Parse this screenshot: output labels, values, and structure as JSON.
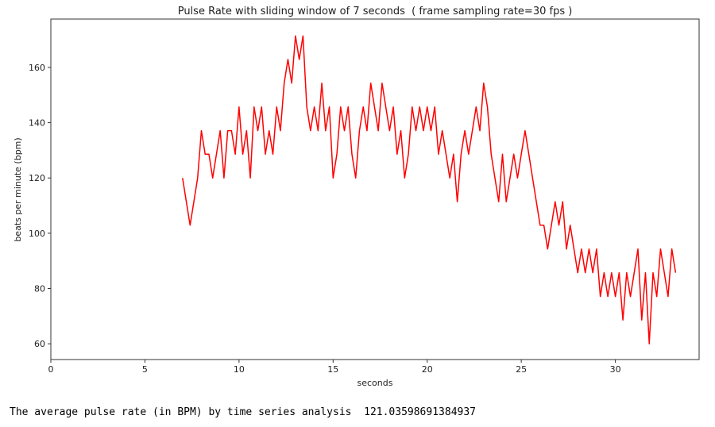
{
  "chart_data": {
    "type": "line",
    "title": "Pulse Rate with sliding window of 7 seconds  ( frame sampling rate=30 fps )",
    "x_label": "seconds",
    "y_label": "beats per minute (bpm)",
    "x": [
      7.0,
      7.2,
      7.4,
      7.6,
      7.8,
      8.0,
      8.2,
      8.4,
      8.6,
      8.8,
      9.0,
      9.2,
      9.4,
      9.6,
      9.8,
      10.0,
      10.2,
      10.4,
      10.6,
      10.8,
      11.0,
      11.2,
      11.4,
      11.6,
      11.8,
      12.0,
      12.2,
      12.4,
      12.6,
      12.8,
      13.0,
      13.2,
      13.4,
      13.6,
      13.8,
      14.0,
      14.2,
      14.4,
      14.6,
      14.8,
      15.0,
      15.2,
      15.4,
      15.6,
      15.8,
      16.0,
      16.2,
      16.4,
      16.6,
      16.8,
      17.0,
      17.2,
      17.4,
      17.6,
      17.8,
      18.0,
      18.2,
      18.4,
      18.6,
      18.8,
      19.0,
      19.2,
      19.4,
      19.6,
      19.8,
      20.0,
      20.2,
      20.4,
      20.6,
      20.8,
      21.0,
      21.2,
      21.4,
      21.6,
      21.8,
      22.0,
      22.2,
      22.4,
      22.6,
      22.8,
      23.0,
      23.2,
      23.4,
      23.6,
      23.8,
      24.0,
      24.2,
      24.4,
      24.6,
      24.8,
      25.0,
      25.2,
      25.4,
      25.6,
      25.8,
      26.0,
      26.2,
      26.4,
      26.6,
      26.8,
      27.0,
      27.2,
      27.4,
      27.6,
      27.8,
      28.0,
      28.2,
      28.4,
      28.6,
      28.8,
      29.0,
      29.2,
      29.4,
      29.6,
      29.8,
      30.0,
      30.2,
      30.4,
      30.6,
      30.8,
      31.0,
      31.2,
      31.4,
      31.6,
      31.8,
      32.0,
      32.2,
      32.4,
      32.6,
      32.8,
      33.0,
      33.2
    ],
    "series": [
      {
        "name": "pulse rate",
        "color": "#ff0000",
        "values": [
          120,
          111.4,
          102.9,
          111.4,
          120,
          137.1,
          128.6,
          128.6,
          120,
          128.6,
          137.1,
          120,
          137.1,
          137.1,
          128.6,
          145.7,
          128.6,
          137.1,
          120,
          145.7,
          137.1,
          145.7,
          128.6,
          137.1,
          128.6,
          145.7,
          137.1,
          154.3,
          162.9,
          154.3,
          171.4,
          162.9,
          171.4,
          145.7,
          137.1,
          145.7,
          137.1,
          154.3,
          137.1,
          145.7,
          120,
          128.6,
          145.7,
          137.1,
          145.7,
          128.6,
          120,
          137.1,
          145.7,
          137.1,
          154.3,
          145.7,
          137.1,
          154.3,
          145.7,
          137.1,
          145.7,
          128.6,
          137.1,
          120,
          128.6,
          145.7,
          137.1,
          145.7,
          137.1,
          145.7,
          137.1,
          145.7,
          128.6,
          137.1,
          128.6,
          120,
          128.6,
          111.4,
          128.6,
          137.1,
          128.6,
          137.1,
          145.7,
          137.1,
          154.3,
          145.7,
          128.6,
          120,
          111.4,
          128.6,
          111.4,
          120,
          128.6,
          120,
          128.6,
          137.1,
          128.6,
          120,
          111.4,
          102.9,
          102.9,
          94.3,
          102.9,
          111.4,
          102.9,
          111.4,
          94.3,
          102.9,
          94.3,
          85.7,
          94.3,
          85.7,
          94.3,
          85.7,
          94.3,
          77.1,
          85.7,
          77.1,
          85.7,
          77.1,
          85.7,
          68.6,
          85.7,
          77.1,
          85.7,
          94.3,
          68.6,
          85.7,
          60,
          85.7,
          77.1,
          94.3,
          85.7,
          77.1,
          94.3,
          85.7
        ]
      }
    ],
    "xlim": [
      0,
      34.45
    ],
    "xticks": [
      0,
      5,
      10,
      15,
      20,
      25,
      30
    ],
    "ylim": [
      54.3,
      177.5
    ],
    "yticks": [
      60,
      80,
      100,
      120,
      140,
      160
    ]
  },
  "output": "The average pulse rate (in BPM) by time series analysis  121.03598691384937"
}
